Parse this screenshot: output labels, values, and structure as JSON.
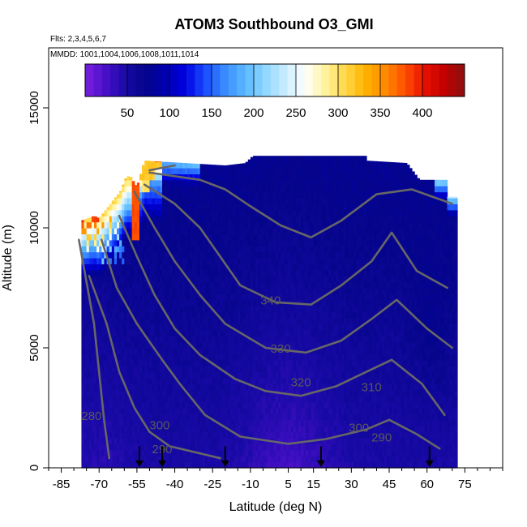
{
  "chart_data": {
    "type": "heatmap",
    "title": "ATOM3 Southbound O3_GMI",
    "subtitle_flights": "Flts: 2,3,4,5,6,7",
    "subtitle_dates": "MMDD: 1001,1004,1006,1008,1011,1014",
    "xlabel": "Latitude (deg N)",
    "ylabel": "Altitude (m)",
    "xlim": [
      -90,
      90
    ],
    "ylim": [
      0,
      17500
    ],
    "x_ticks": [
      -85,
      -70,
      -55,
      -40,
      -25,
      -10,
      5,
      15,
      30,
      45,
      60,
      75
    ],
    "y_ticks": [
      0,
      5000,
      10000,
      15000
    ],
    "y_tick_labels": [
      "0",
      "5000",
      "10000",
      "15000"
    ],
    "colorbar": {
      "range": [
        0,
        450
      ],
      "ticks": [
        50,
        100,
        150,
        200,
        250,
        300,
        350,
        400
      ],
      "tick_labels": [
        "50",
        "100",
        "150",
        "200",
        "250",
        "300",
        "350",
        "400"
      ],
      "colors": [
        "#7b1fe0",
        "#4a10c8",
        "#1a0aa8",
        "#05058a",
        "#0000b0",
        "#0000e0",
        "#1a4cff",
        "#3a8cff",
        "#5ab8ff",
        "#8ed6ff",
        "#c8ecff",
        "#ffffff",
        "#fff3a0",
        "#ffd84a",
        "#ffb400",
        "#ff8c00",
        "#ff5000",
        "#e81000",
        "#c00000",
        "#8c1010"
      ],
      "placement": "top inside plot"
    },
    "theta_contours": [
      {
        "label": "280",
        "value": 280
      },
      {
        "label": "290",
        "value": 290
      },
      {
        "label": "300",
        "value": 300
      },
      {
        "label": "310",
        "value": 310
      },
      {
        "label": "320",
        "value": 320
      },
      {
        "label": "330",
        "value": 330
      },
      {
        "label": "340",
        "value": 340
      }
    ],
    "contour_labels": [
      "340",
      "330",
      "320",
      "310",
      "300",
      "290",
      "280",
      "300",
      "290"
    ],
    "flight_markers_lat": [
      -54,
      -45,
      -20,
      18,
      61
    ],
    "o3_ranges_ppbv": {
      "tropical_boundary_layer": 25,
      "mid_troposphere": 50,
      "upper_troposphere_tropics": 60,
      "southern_upper_trop_pockets": 200,
      "southern_stratosphere_peak": 380
    }
  }
}
